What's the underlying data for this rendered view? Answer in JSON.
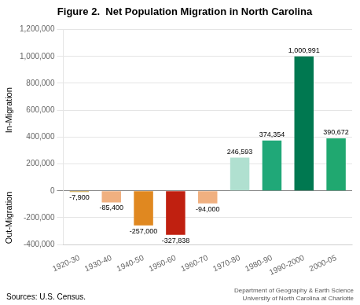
{
  "chart_data": {
    "type": "bar",
    "title": "Figure 2.  Net Population Migration in North Carolina",
    "ylabel": [
      "In-Migration",
      "Out-Migration"
    ],
    "annotations": [
      "Sources: U.S. Census.",
      "Department of Geography & Earth Science",
      "University of North Carolina at Charlotte"
    ],
    "categories": [
      "1920-30",
      "1930-40",
      "1940-50",
      "1950-60",
      "1960-70",
      "1970-80",
      "1980-90",
      "1990-2000",
      "2000-05"
    ],
    "values": [
      -7900,
      -85400,
      -257000,
      -327838,
      -94000,
      246593,
      374354,
      1000991,
      390672
    ],
    "value_labels": [
      "-7,900",
      "-85,400",
      "-257,000",
      "-327,838",
      "-94,000",
      "246,593",
      "374,354",
      "1,000,991",
      "390,672"
    ],
    "colors": [
      "#c8a040",
      "#f0b080",
      "#e08820",
      "#c02010",
      "#f0b080",
      "#b0e0d0",
      "#20a878",
      "#007850",
      "#20a870"
    ],
    "ylim": [
      -400000,
      1200000
    ],
    "yticks": [
      {
        "value": -400000,
        "label": "-400,000"
      },
      {
        "value": -200000,
        "label": "-200,000"
      },
      0,
      {
        "value": 200000,
        "label": "200,000"
      },
      {
        "value": 400000,
        "label": "400,000"
      },
      {
        "value": 600000,
        "label": "600,000"
      },
      {
        "value": 800000,
        "label": "800,000"
      },
      {
        "value": 1000000,
        "label": "1,000,000"
      },
      {
        "value": 1200000,
        "label": "1,200,000"
      }
    ],
    "grid": true,
    "data_labels": true
  }
}
